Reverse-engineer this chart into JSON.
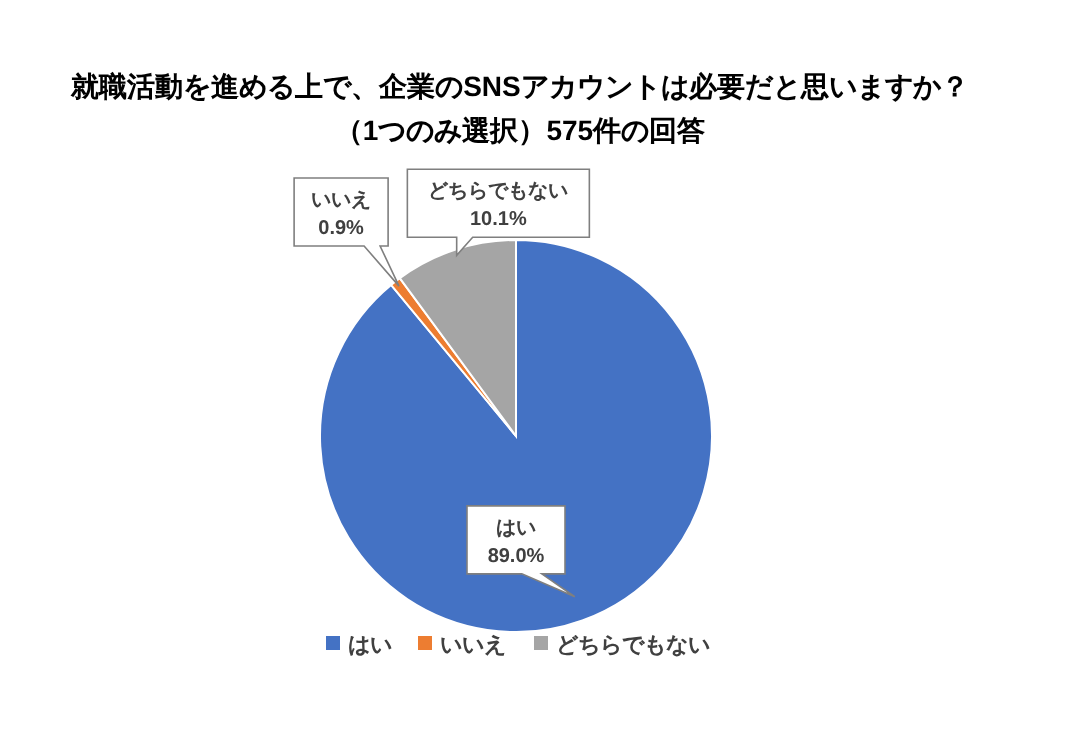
{
  "chart_data": {
    "type": "pie",
    "title": "就職活動を進める上で、企業のSNSアカウントは必要だと思いますか？",
    "subtitle": "（1つのみ選択）575件の回答",
    "categories": [
      "はい",
      "いいえ",
      "どちらでもない"
    ],
    "values": [
      89.0,
      0.9,
      10.1
    ],
    "colors": [
      "#4472c4",
      "#ed7d31",
      "#a5a5a5"
    ],
    "value_labels": [
      "89.0%",
      "0.9%",
      "10.1%"
    ],
    "legend": "bottom"
  }
}
